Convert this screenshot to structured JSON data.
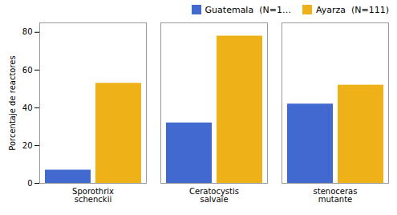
{
  "chart_data": {
    "type": "bar",
    "categories": [
      "Sporothrix\nschenckii",
      "Ceratocystis\nsalvaïe",
      "stenoceras\nmutante"
    ],
    "series": [
      {
        "name": "Guatemala  (N=1…",
        "values": [
          7,
          32,
          42
        ]
      },
      {
        "name": "Ayarza  (N=111)",
        "values": [
          53,
          78,
          52
        ]
      }
    ],
    "ylabel": "Porcentaje de reactores",
    "ylim": [
      0,
      85
    ],
    "yticks": [
      0,
      20,
      40,
      60,
      80
    ],
    "legend": "upper right",
    "grid": false
  }
}
